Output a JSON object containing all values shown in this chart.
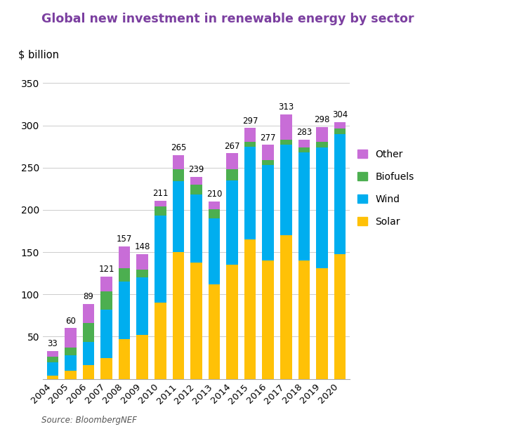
{
  "years": [
    "2004",
    "2005",
    "2006",
    "2007",
    "2008",
    "2009",
    "2010",
    "2011",
    "2012",
    "2013",
    "2014",
    "2015",
    "2016",
    "2017",
    "2018",
    "2019",
    "2020"
  ],
  "totals": [
    33,
    60,
    89,
    121,
    157,
    148,
    211,
    265,
    239,
    210,
    267,
    297,
    277,
    313,
    283,
    298,
    304
  ],
  "solar": [
    4,
    10,
    16,
    25,
    47,
    52,
    90,
    150,
    138,
    112,
    135,
    165,
    140,
    170,
    140,
    131,
    148
  ],
  "wind": [
    16,
    18,
    28,
    57,
    68,
    68,
    103,
    84,
    80,
    78,
    100,
    110,
    113,
    107,
    128,
    143,
    142
  ],
  "biofuels": [
    6,
    9,
    22,
    22,
    16,
    9,
    11,
    14,
    12,
    11,
    13,
    6,
    6,
    6,
    6,
    7,
    6
  ],
  "other": [
    7,
    23,
    23,
    17,
    26,
    19,
    7,
    17,
    9,
    9,
    19,
    16,
    18,
    30,
    9,
    17,
    8
  ],
  "solar_color": "#FFC107",
  "wind_color": "#00AEEF",
  "biofuels_color": "#4CAF50",
  "other_color": "#C86DD7",
  "title": "Global new investment in renewable energy by sector",
  "ylabel": "$ billion",
  "source": "Source: BloombergNEF",
  "title_color": "#7B3FA0",
  "ylim": [
    0,
    370
  ],
  "yticks": [
    0,
    50,
    100,
    150,
    200,
    250,
    300,
    350
  ]
}
